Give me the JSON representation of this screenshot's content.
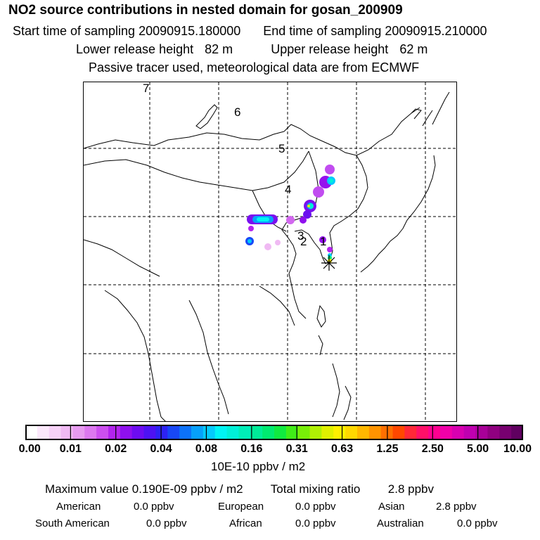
{
  "header": {
    "title": "NO2 source contributions in nested domain for gosan_200909",
    "start_label": "Start time of sampling",
    "start_value": "20090915.180000",
    "end_label": "End time of sampling",
    "end_value": "20090915.210000",
    "lower_label": "Lower release height",
    "lower_value": "82 m",
    "upper_label": "Upper release height",
    "upper_value": "62 m",
    "tracer_note": "Passive tracer used, meteorological data are from ECMWF"
  },
  "map": {
    "track_labels": [
      "1",
      "2",
      "3",
      "4",
      "5",
      "6",
      "7"
    ],
    "receptor_icon": "asterisk-star-icon"
  },
  "colorbar": {
    "tick_labels": [
      "0.00",
      "0.01",
      "0.02",
      "0.04",
      "0.08",
      "0.16",
      "0.31",
      "0.63",
      "1.25",
      "2.50",
      "5.00",
      "10.00"
    ],
    "unit": "10E-10 ppbv / m2",
    "colors": [
      "#ffffff",
      "#fbe8fb",
      "#f6d2f7",
      "#f0baf3",
      "#e79bf0",
      "#dc78ef",
      "#cc4fef",
      "#b324ee",
      "#8f10ee",
      "#6d0cf0",
      "#4d12f2",
      "#2d22f4",
      "#1848f6",
      "#0c72f8",
      "#06a0fa",
      "#04cafc",
      "#00f4f4",
      "#00f0d8",
      "#00eeb8",
      "#00ec98",
      "#00ea70",
      "#10ea40",
      "#40ec18",
      "#78ee08",
      "#b0f004",
      "#e0f000",
      "#fff000",
      "#ffd800",
      "#ffb800",
      "#ff9400",
      "#ff7000",
      "#ff4800",
      "#ff2838",
      "#ff1068",
      "#ff0090",
      "#f000a8",
      "#d800b0",
      "#c000b0",
      "#a80098",
      "#900080",
      "#780070",
      "#600060"
    ]
  },
  "footer": {
    "max_label": "Maximum value",
    "max_value": "0.190E-09 ppbv / m2",
    "total_label": "Total mixing ratio",
    "total_value": "2.8 ppbv",
    "regions": [
      {
        "name": "American",
        "value": "0.0 ppbv"
      },
      {
        "name": "European",
        "value": "0.0 ppbv"
      },
      {
        "name": "Asian",
        "value": "2.8 ppbv"
      },
      {
        "name": "South American",
        "value": "0.0 ppbv"
      },
      {
        "name": "African",
        "value": "0.0 ppbv"
      },
      {
        "name": "Australian",
        "value": "0.0 ppbv"
      }
    ]
  }
}
